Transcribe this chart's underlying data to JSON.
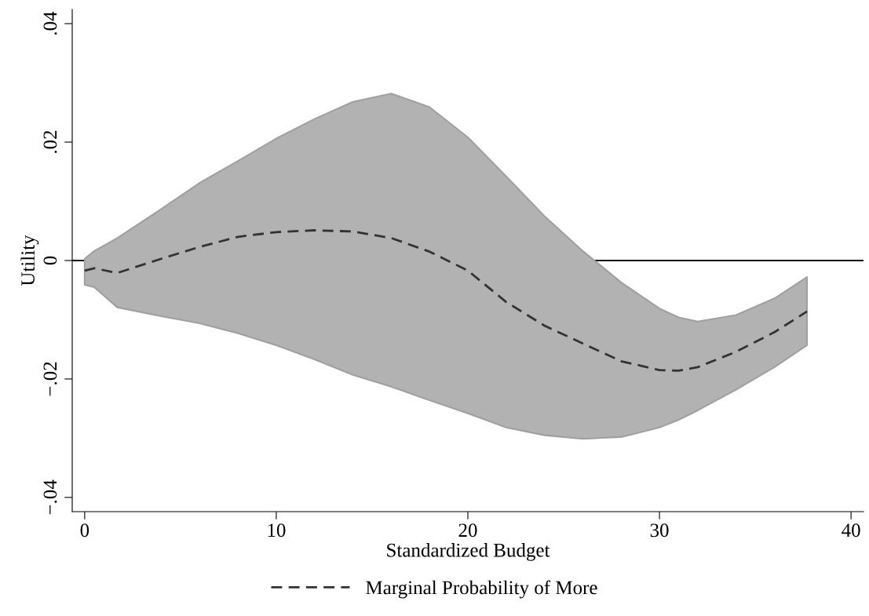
{
  "chart_data": {
    "type": "line",
    "xlabel": "Standardized Budget",
    "ylabel": "Utility",
    "x": [
      0,
      0.5,
      1.7,
      4,
      6,
      8,
      10,
      12,
      14,
      16,
      18,
      20,
      22,
      24,
      26,
      28,
      30,
      31,
      32,
      34,
      36,
      37.7
    ],
    "series": [
      {
        "name": "Marginal Probability of More",
        "color": "#333333",
        "line_style": "dashed",
        "values": [
          -0.0017,
          -0.0013,
          -0.0021,
          0.0003,
          0.0023,
          0.004,
          0.0048,
          0.0051,
          0.0049,
          0.0038,
          0.0015,
          -0.0017,
          -0.007,
          -0.011,
          -0.014,
          -0.017,
          -0.0185,
          -0.0186,
          -0.018,
          -0.0154,
          -0.0121,
          -0.0086
        ],
        "lower": [
          -0.0041,
          -0.0045,
          -0.0079,
          -0.0094,
          -0.0106,
          -0.0123,
          -0.0143,
          -0.0167,
          -0.0193,
          -0.0213,
          -0.0236,
          -0.0258,
          -0.0282,
          -0.0295,
          -0.0301,
          -0.0298,
          -0.0282,
          -0.0269,
          -0.0253,
          -0.0218,
          -0.018,
          -0.0143
        ],
        "upper": [
          0.0003,
          0.0016,
          0.0038,
          0.0087,
          0.0131,
          0.0168,
          0.0206,
          0.0239,
          0.0268,
          0.0282,
          0.0259,
          0.0208,
          0.0142,
          0.0075,
          0.0016,
          -0.0037,
          -0.0081,
          -0.0096,
          -0.0103,
          -0.0092,
          -0.0064,
          -0.0028
        ]
      }
    ],
    "ref_lines": [
      {
        "axis": "y",
        "value": 0,
        "color": "#000000"
      }
    ],
    "xlim": [
      -0.65,
      40.65
    ],
    "xticks": [
      0,
      10,
      20,
      30,
      40
    ],
    "ylim": [
      -0.0424,
      0.0424
    ],
    "yticks": [
      {
        "value": -0.04,
        "label": "−.04"
      },
      {
        "value": -0.02,
        "label": "−.02"
      },
      0,
      {
        "value": 0.02,
        "label": ".02"
      },
      {
        "value": 0.04,
        "label": ".04"
      }
    ],
    "grid": false,
    "legend": "bottom",
    "marker": "none"
  }
}
